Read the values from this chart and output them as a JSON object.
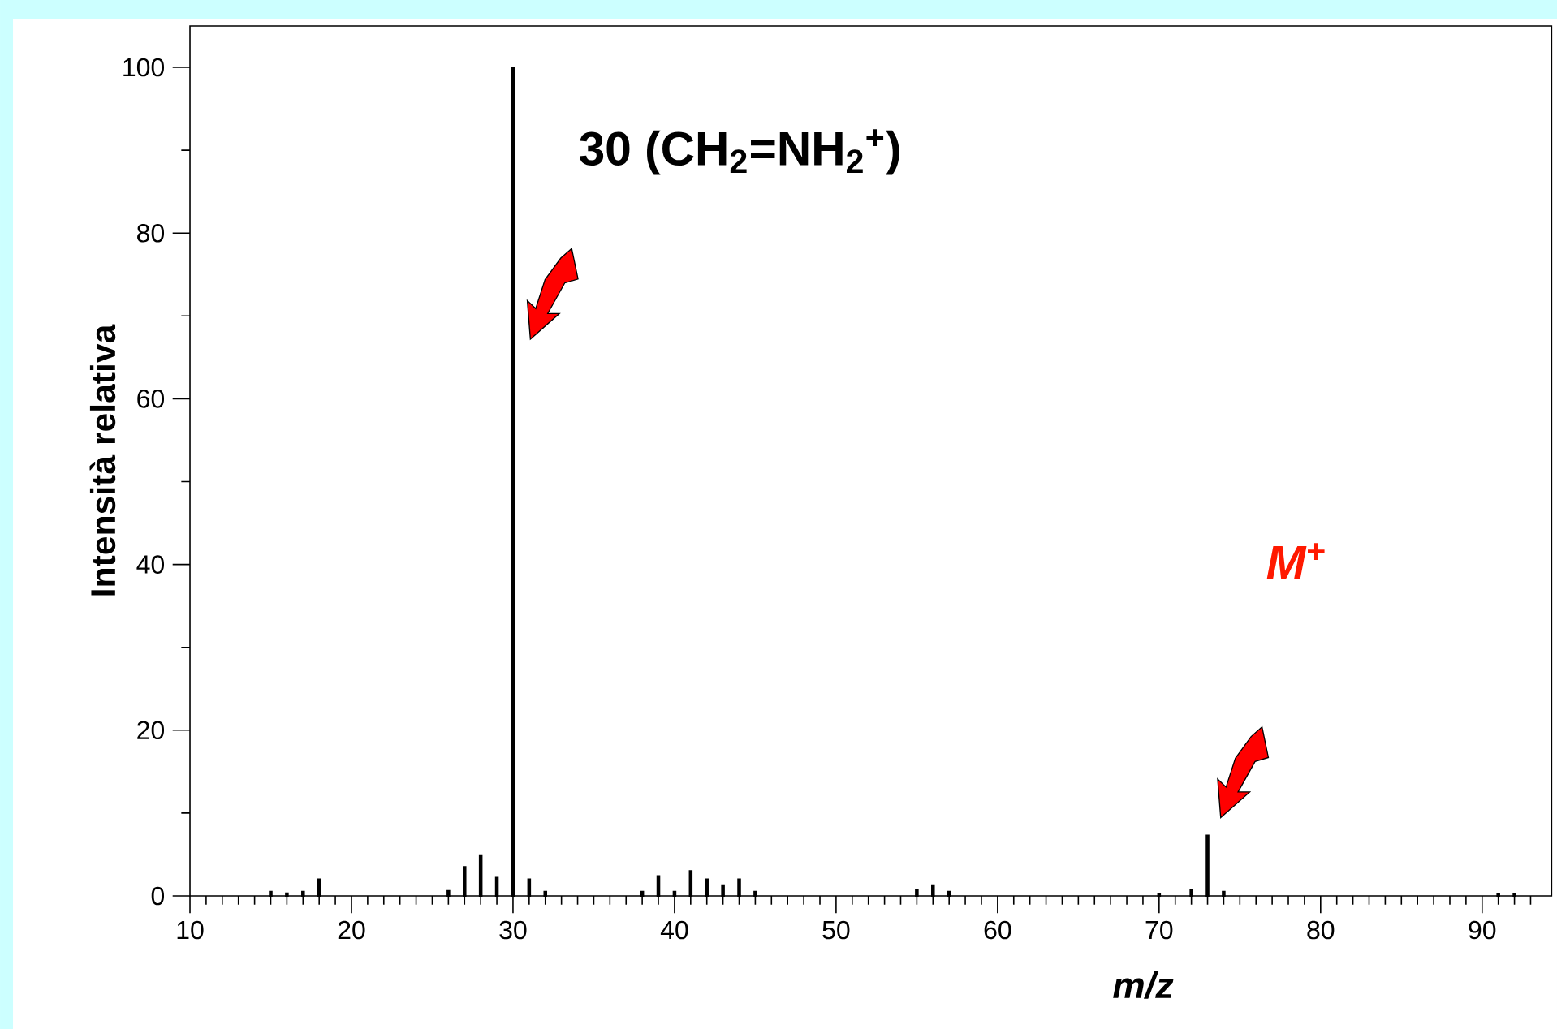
{
  "chart_data": {
    "type": "bar",
    "xlabel": "m/z",
    "ylabel": "Intensità relativa",
    "x": [
      15,
      16,
      17,
      18,
      26,
      27,
      28,
      29,
      30,
      31,
      32,
      38,
      39,
      40,
      41,
      42,
      43,
      44,
      45,
      55,
      56,
      57,
      70,
      72,
      73,
      74,
      91,
      92
    ],
    "values": [
      0.5,
      0.3,
      0.5,
      2,
      0.6,
      3.5,
      4.9,
      2.2,
      100,
      2,
      0.5,
      0.5,
      2.4,
      0.5,
      3,
      2,
      1.3,
      2,
      0.5,
      0.7,
      1.3,
      0.5,
      0.2,
      0.7,
      7.3,
      0.5,
      0.2,
      0.2
    ],
    "color": "#000000",
    "xlim": [
      10,
      94.3
    ],
    "ylim": [
      0,
      105
    ],
    "xticks": [
      10,
      {
        "value": 11,
        "label": null
      },
      {
        "value": 12,
        "label": null
      },
      {
        "value": 13,
        "label": null
      },
      {
        "value": 14,
        "label": null
      },
      {
        "value": 15,
        "label": null
      },
      {
        "value": 16,
        "label": null
      },
      {
        "value": 17,
        "label": null
      },
      {
        "value": 18,
        "label": null
      },
      {
        "value": 19,
        "label": null
      },
      20,
      {
        "value": 21,
        "label": null
      },
      {
        "value": 22,
        "label": null
      },
      {
        "value": 23,
        "label": null
      },
      {
        "value": 24,
        "label": null
      },
      {
        "value": 25,
        "label": null
      },
      {
        "value": 26,
        "label": null
      },
      {
        "value": 27,
        "label": null
      },
      {
        "value": 28,
        "label": null
      },
      {
        "value": 29,
        "label": null
      },
      30,
      {
        "value": 31,
        "label": null
      },
      {
        "value": 32,
        "label": null
      },
      {
        "value": 33,
        "label": null
      },
      {
        "value": 34,
        "label": null
      },
      {
        "value": 35,
        "label": null
      },
      {
        "value": 36,
        "label": null
      },
      {
        "value": 37,
        "label": null
      },
      {
        "value": 38,
        "label": null
      },
      {
        "value": 39,
        "label": null
      },
      40,
      {
        "value": 41,
        "label": null
      },
      {
        "value": 42,
        "label": null
      },
      {
        "value": 43,
        "label": null
      },
      {
        "value": 44,
        "label": null
      },
      {
        "value": 45,
        "label": null
      },
      {
        "value": 46,
        "label": null
      },
      {
        "value": 47,
        "label": null
      },
      {
        "value": 48,
        "label": null
      },
      {
        "value": 49,
        "label": null
      },
      50,
      {
        "value": 51,
        "label": null
      },
      {
        "value": 52,
        "label": null
      },
      {
        "value": 53,
        "label": null
      },
      {
        "value": 54,
        "label": null
      },
      {
        "value": 55,
        "label": null
      },
      {
        "value": 56,
        "label": null
      },
      {
        "value": 57,
        "label": null
      },
      {
        "value": 58,
        "label": null
      },
      {
        "value": 59,
        "label": null
      },
      60,
      {
        "value": 61,
        "label": null
      },
      {
        "value": 62,
        "label": null
      },
      {
        "value": 63,
        "label": null
      },
      {
        "value": 64,
        "label": null
      },
      {
        "value": 65,
        "label": null
      },
      {
        "value": 66,
        "label": null
      },
      {
        "value": 67,
        "label": null
      },
      {
        "value": 68,
        "label": null
      },
      {
        "value": 69,
        "label": null
      },
      70,
      {
        "value": 71,
        "label": null
      },
      {
        "value": 72,
        "label": null
      },
      {
        "value": 73,
        "label": null
      },
      {
        "value": 74,
        "label": null
      },
      {
        "value": 75,
        "label": null
      },
      {
        "value": 76,
        "label": null
      },
      {
        "value": 77,
        "label": null
      },
      {
        "value": 78,
        "label": null
      },
      {
        "value": 79,
        "label": null
      },
      80,
      {
        "value": 81,
        "label": null
      },
      {
        "value": 82,
        "label": null
      },
      {
        "value": 83,
        "label": null
      },
      {
        "value": 84,
        "label": null
      },
      {
        "value": 85,
        "label": null
      },
      {
        "value": 86,
        "label": null
      },
      {
        "value": 87,
        "label": null
      },
      {
        "value": 88,
        "label": null
      },
      {
        "value": 89,
        "label": null
      },
      90,
      {
        "value": 91,
        "label": null
      },
      {
        "value": 92,
        "label": null
      },
      {
        "value": 93,
        "label": null
      }
    ],
    "yticks": [
      0,
      {
        "value": 10,
        "label": null
      },
      20,
      {
        "value": 30,
        "label": null
      },
      40,
      {
        "value": 50,
        "label": null
      },
      60,
      {
        "value": 70,
        "label": null
      },
      80,
      {
        "value": 90,
        "label": null
      },
      100
    ],
    "annotations": [
      "30 (CH$_{2}$=NH$_{2}$$^{+}$)",
      "*M*$^{+}$"
    ]
  }
}
